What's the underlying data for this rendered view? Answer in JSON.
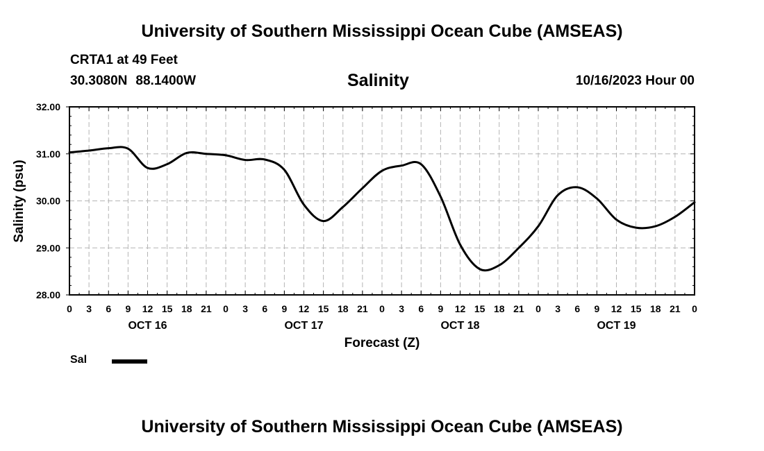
{
  "header": {
    "title": "University of Southern Mississippi Ocean Cube (AMSEAS)",
    "station": "CRTA1 at 49 Feet",
    "latitude": "30.3080N",
    "longitude": "88.1400W",
    "variable": "Salinity",
    "issued": "10/16/2023 Hour 00"
  },
  "footer": {
    "title": "University of Southern Mississippi Ocean Cube (AMSEAS)"
  },
  "chart_data": {
    "type": "line",
    "title": "Salinity",
    "xlabel": "Forecast (Z)",
    "ylabel": "Salinity (psu)",
    "xlim": [
      0,
      96
    ],
    "ylim": [
      28,
      32
    ],
    "grid": true,
    "yticks": [
      {
        "value": 28,
        "label": "28.00"
      },
      {
        "value": 29,
        "label": "29.00"
      },
      {
        "value": 30,
        "label": "30.00"
      },
      {
        "value": 31,
        "label": "31.00"
      },
      {
        "value": 32,
        "label": "32.00"
      }
    ],
    "xticks": [
      {
        "value": 0,
        "label": "0"
      },
      {
        "value": 3,
        "label": "3"
      },
      {
        "value": 6,
        "label": "6"
      },
      {
        "value": 9,
        "label": "9"
      },
      {
        "value": 12,
        "label": "12"
      },
      {
        "value": 15,
        "label": "15"
      },
      {
        "value": 18,
        "label": "18"
      },
      {
        "value": 21,
        "label": "21"
      },
      {
        "value": 24,
        "label": "0"
      },
      {
        "value": 27,
        "label": "3"
      },
      {
        "value": 30,
        "label": "6"
      },
      {
        "value": 33,
        "label": "9"
      },
      {
        "value": 36,
        "label": "12"
      },
      {
        "value": 39,
        "label": "15"
      },
      {
        "value": 42,
        "label": "18"
      },
      {
        "value": 45,
        "label": "21"
      },
      {
        "value": 48,
        "label": "0"
      },
      {
        "value": 51,
        "label": "3"
      },
      {
        "value": 54,
        "label": "6"
      },
      {
        "value": 57,
        "label": "9"
      },
      {
        "value": 60,
        "label": "12"
      },
      {
        "value": 63,
        "label": "15"
      },
      {
        "value": 66,
        "label": "18"
      },
      {
        "value": 69,
        "label": "21"
      },
      {
        "value": 72,
        "label": "0"
      },
      {
        "value": 75,
        "label": "3"
      },
      {
        "value": 78,
        "label": "6"
      },
      {
        "value": 81,
        "label": "9"
      },
      {
        "value": 84,
        "label": "12"
      },
      {
        "value": 87,
        "label": "15"
      },
      {
        "value": 90,
        "label": "18"
      },
      {
        "value": 93,
        "label": "21"
      },
      {
        "value": 96,
        "label": "0"
      }
    ],
    "day_labels": [
      {
        "value": 12,
        "label": "OCT 16"
      },
      {
        "value": 36,
        "label": "OCT 17"
      },
      {
        "value": 60,
        "label": "OCT 18"
      },
      {
        "value": 84,
        "label": "OCT 19"
      }
    ],
    "series": [
      {
        "name": "Sal",
        "x": [
          0,
          3,
          6,
          9,
          12,
          15,
          18,
          21,
          24,
          27,
          30,
          33,
          36,
          39,
          42,
          45,
          48,
          51,
          54,
          57,
          60,
          63,
          66,
          69,
          72,
          75,
          78,
          81,
          84,
          87,
          90,
          93,
          96
        ],
        "values": [
          31.03,
          31.07,
          31.12,
          31.11,
          30.7,
          30.78,
          31.02,
          31.0,
          30.97,
          30.87,
          30.88,
          30.66,
          29.92,
          29.57,
          29.87,
          30.27,
          30.64,
          30.75,
          30.78,
          30.09,
          29.07,
          28.55,
          28.63,
          29.0,
          29.46,
          30.12,
          30.29,
          30.05,
          29.6,
          29.43,
          29.46,
          29.66,
          29.97
        ]
      }
    ]
  },
  "legend": {
    "label": "Sal"
  }
}
